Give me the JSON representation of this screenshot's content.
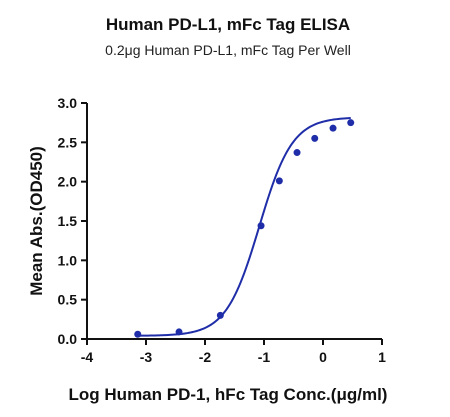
{
  "chart_data": {
    "type": "scatter",
    "title": "Human PD-L1, mFc Tag ELISA",
    "subtitle": "0.2μg Human PD-L1, mFc Tag Per Well",
    "xlabel": "Log Human PD-1, hFc Tag Conc.(μg/ml)",
    "ylabel": "Mean Abs.(OD450)",
    "xlim": [
      -4,
      1
    ],
    "ylim": [
      0.0,
      3.0
    ],
    "x_ticks": [
      "-4",
      "-3",
      "-2",
      "-1",
      "0",
      "1"
    ],
    "y_ticks": [
      "0.0",
      "0.5",
      "1.0",
      "1.5",
      "2.0",
      "2.5",
      "3.0"
    ],
    "grid": false,
    "color": "#1f2ea8",
    "series": [
      {
        "x": [
          -3.14,
          -2.44,
          -1.74,
          -1.05,
          -0.74,
          -0.44,
          -0.14,
          0.17,
          0.47
        ],
        "y": [
          0.06,
          0.09,
          0.3,
          1.44,
          2.01,
          2.37,
          2.55,
          2.68,
          2.75
        ]
      }
    ],
    "fit_curve": {
      "type": "4PL",
      "bottom": 0.04,
      "top": 2.82,
      "log_ec50": -1.08,
      "hill_slope": 1.55
    }
  }
}
